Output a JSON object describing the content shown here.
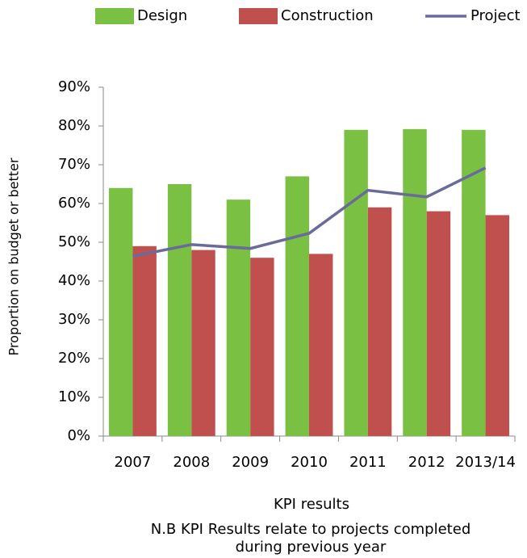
{
  "chart_data": {
    "type": "bar",
    "y_label": "Proportion on budget or better",
    "x_label": "KPI results",
    "note": [
      "N.B KPI Results relate to projects completed",
      "during previous year"
    ],
    "categories": [
      "2007",
      "2008",
      "2009",
      "2010",
      "2011",
      "2012",
      "2013/14"
    ],
    "series": [
      {
        "name": "Design",
        "type": "bar",
        "color": "#7ac143",
        "values": [
          64,
          65,
          61,
          67,
          79,
          79.2,
          79
        ]
      },
      {
        "name": "Construction",
        "type": "bar",
        "color": "#c0504d",
        "values": [
          49,
          48,
          46,
          47,
          59,
          58,
          57
        ]
      },
      {
        "name": "Project",
        "type": "line",
        "color": "#6b6b9b",
        "values": [
          46.4,
          49.4,
          48.4,
          52.3,
          63.4,
          61.7,
          69.2
        ]
      }
    ],
    "ylim": [
      0,
      90
    ],
    "yticks": [
      {
        "value": 0,
        "label": "0%"
      },
      {
        "value": 10,
        "label": "10%"
      },
      {
        "value": 20,
        "label": "20%"
      },
      {
        "value": 30,
        "label": "30%"
      },
      {
        "value": 40,
        "label": "40%"
      },
      {
        "value": 50,
        "label": "50%"
      },
      {
        "value": 60,
        "label": "60%"
      },
      {
        "value": 70,
        "label": "70%"
      },
      {
        "value": 80,
        "label": "80%"
      },
      {
        "value": 90,
        "label": "90%"
      }
    ],
    "grid": false,
    "legend": "top"
  }
}
